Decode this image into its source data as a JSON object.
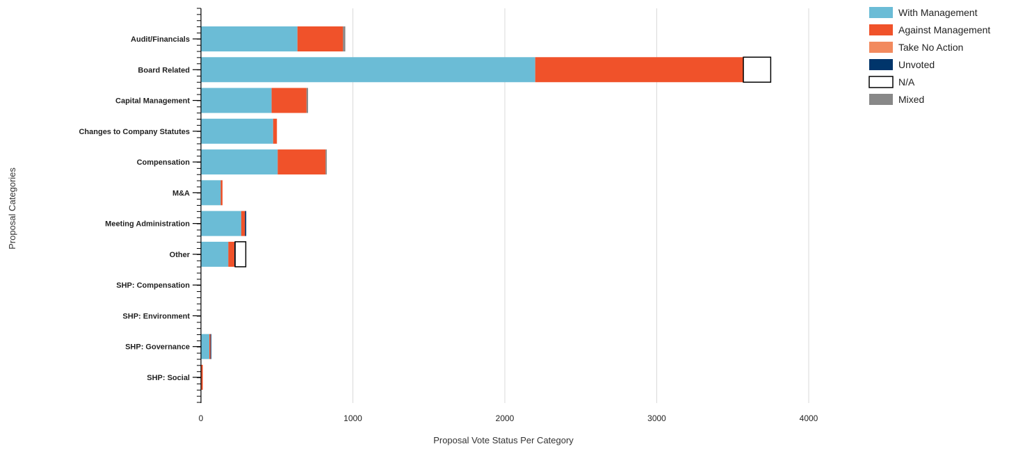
{
  "chart_data": {
    "type": "bar",
    "orientation": "horizontal",
    "stacked": true,
    "title": "",
    "xlabel": "Proposal Vote Status Per Category",
    "ylabel": "Proposal Categories",
    "xlim": [
      0,
      4000
    ],
    "xticks": [
      0,
      1000,
      2000,
      3000,
      4000
    ],
    "grid": "vertical",
    "legend_position": "top-right",
    "categories": [
      "Audit/Financials",
      "Board Related",
      "Capital Management",
      "Changes to Company Statutes",
      "Compensation",
      "M&A",
      "Meeting Administration",
      "Other",
      "SHP: Compensation",
      "SHP: Environment",
      "SHP: Governance",
      "SHP: Social"
    ],
    "series": [
      {
        "name": "With Management",
        "color": "#6bbcd6",
        "values": [
          635,
          2200,
          465,
          475,
          505,
          130,
          265,
          180,
          0,
          0,
          55,
          0
        ]
      },
      {
        "name": "Against Management",
        "color": "#f0522a",
        "values": [
          300,
          1370,
          230,
          25,
          315,
          12,
          25,
          40,
          0,
          0,
          8,
          12
        ]
      },
      {
        "name": "Take No Action",
        "color": "#f28a5e",
        "values": [
          0,
          0,
          0,
          0,
          0,
          0,
          0,
          0,
          0,
          0,
          0,
          0
        ]
      },
      {
        "name": "Unvoted",
        "color": "#00356b",
        "values": [
          0,
          0,
          0,
          0,
          0,
          0,
          8,
          5,
          0,
          0,
          5,
          0
        ]
      },
      {
        "name": "N/A",
        "color": "#ffffff",
        "values": [
          0,
          180,
          0,
          0,
          0,
          0,
          0,
          70,
          0,
          0,
          0,
          0
        ]
      },
      {
        "name": "Mixed",
        "color": "#888888",
        "values": [
          15,
          0,
          10,
          0,
          8,
          0,
          0,
          0,
          0,
          0,
          0,
          0
        ]
      }
    ]
  }
}
